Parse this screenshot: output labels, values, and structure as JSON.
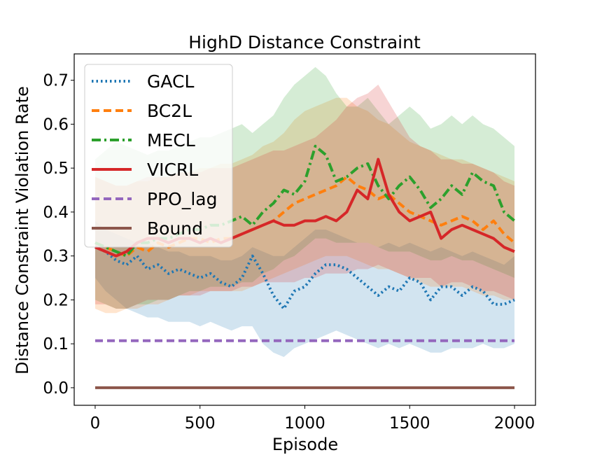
{
  "chart_data": {
    "type": "line",
    "title": "HighD Distance Constraint",
    "xlabel": "Episode",
    "ylabel": "Distance Constraint Violation Rate",
    "xlim": [
      -100,
      2100
    ],
    "ylim": [
      -0.04,
      0.76
    ],
    "xticks": [
      0,
      500,
      1000,
      1500,
      2000
    ],
    "yticks": [
      0.0,
      0.1,
      0.2,
      0.3,
      0.4,
      0.5,
      0.6,
      0.7
    ],
    "xtick_labels": [
      "0",
      "500",
      "1000",
      "1500",
      "2000"
    ],
    "ytick_labels": [
      "0.0",
      "0.1",
      "0.2",
      "0.3",
      "0.4",
      "0.5",
      "0.6",
      "0.7"
    ],
    "legend_position": "top-left",
    "series": [
      {
        "name": "GACL",
        "color": "#1f77b4",
        "style": "dotted",
        "x": [
          0,
          50,
          100,
          150,
          200,
          250,
          300,
          350,
          400,
          450,
          500,
          550,
          600,
          650,
          700,
          750,
          800,
          850,
          900,
          950,
          1000,
          1050,
          1100,
          1150,
          1200,
          1250,
          1300,
          1350,
          1400,
          1450,
          1500,
          1550,
          1600,
          1650,
          1700,
          1750,
          1800,
          1850,
          1900,
          1950,
          2000
        ],
        "values": [
          0.32,
          0.31,
          0.29,
          0.28,
          0.3,
          0.27,
          0.28,
          0.26,
          0.27,
          0.26,
          0.25,
          0.26,
          0.24,
          0.23,
          0.25,
          0.3,
          0.26,
          0.21,
          0.18,
          0.22,
          0.23,
          0.26,
          0.28,
          0.28,
          0.27,
          0.25,
          0.23,
          0.21,
          0.23,
          0.22,
          0.25,
          0.24,
          0.2,
          0.23,
          0.23,
          0.21,
          0.23,
          0.22,
          0.19,
          0.19,
          0.2
        ],
        "band_low": [
          0.25,
          0.22,
          0.2,
          0.18,
          0.17,
          0.16,
          0.16,
          0.15,
          0.15,
          0.15,
          0.14,
          0.15,
          0.14,
          0.13,
          0.14,
          0.14,
          0.1,
          0.08,
          0.07,
          0.09,
          0.1,
          0.11,
          0.12,
          0.13,
          0.12,
          0.11,
          0.1,
          0.09,
          0.1,
          0.09,
          0.1,
          0.09,
          0.08,
          0.08,
          0.09,
          0.09,
          0.09,
          0.1,
          0.09,
          0.09,
          0.1
        ],
        "band_high": [
          0.38,
          0.36,
          0.35,
          0.34,
          0.33,
          0.33,
          0.32,
          0.31,
          0.31,
          0.3,
          0.3,
          0.3,
          0.29,
          0.29,
          0.3,
          0.32,
          0.31,
          0.3,
          0.3,
          0.32,
          0.34,
          0.36,
          0.36,
          0.35,
          0.34,
          0.33,
          0.33,
          0.32,
          0.33,
          0.32,
          0.33,
          0.32,
          0.31,
          0.32,
          0.31,
          0.3,
          0.31,
          0.3,
          0.29,
          0.28,
          0.3
        ]
      },
      {
        "name": "BC2L",
        "color": "#ff7f0e",
        "style": "dashed",
        "x": [
          0,
          50,
          100,
          150,
          200,
          250,
          300,
          350,
          400,
          450,
          500,
          550,
          600,
          650,
          700,
          750,
          800,
          850,
          900,
          950,
          1000,
          1050,
          1100,
          1150,
          1200,
          1250,
          1300,
          1350,
          1400,
          1450,
          1500,
          1550,
          1600,
          1650,
          1700,
          1750,
          1800,
          1850,
          1900,
          1950,
          2000
        ],
        "values": [
          0.33,
          0.32,
          0.31,
          0.3,
          0.32,
          0.31,
          0.33,
          0.32,
          0.33,
          0.34,
          0.34,
          0.33,
          0.34,
          0.34,
          0.35,
          0.36,
          0.37,
          0.38,
          0.4,
          0.42,
          0.43,
          0.44,
          0.45,
          0.46,
          0.48,
          0.46,
          0.45,
          0.43,
          0.44,
          0.42,
          0.4,
          0.39,
          0.38,
          0.37,
          0.38,
          0.39,
          0.38,
          0.36,
          0.38,
          0.35,
          0.33
        ],
        "band_low": [
          0.18,
          0.17,
          0.17,
          0.18,
          0.18,
          0.19,
          0.19,
          0.2,
          0.21,
          0.21,
          0.22,
          0.22,
          0.22,
          0.22,
          0.22,
          0.23,
          0.24,
          0.25,
          0.26,
          0.27,
          0.28,
          0.29,
          0.3,
          0.3,
          0.3,
          0.29,
          0.28,
          0.27,
          0.27,
          0.26,
          0.25,
          0.24,
          0.23,
          0.23,
          0.23,
          0.23,
          0.22,
          0.21,
          0.21,
          0.2,
          0.2
        ],
        "band_high": [
          0.48,
          0.47,
          0.46,
          0.46,
          0.47,
          0.47,
          0.48,
          0.48,
          0.49,
          0.49,
          0.5,
          0.5,
          0.51,
          0.51,
          0.52,
          0.53,
          0.55,
          0.56,
          0.58,
          0.61,
          0.63,
          0.64,
          0.65,
          0.66,
          0.66,
          0.64,
          0.63,
          0.61,
          0.6,
          0.58,
          0.56,
          0.55,
          0.54,
          0.53,
          0.52,
          0.52,
          0.51,
          0.5,
          0.49,
          0.48,
          0.47
        ]
      },
      {
        "name": "MECL",
        "color": "#2ca02c",
        "style": "dashdot",
        "x": [
          0,
          50,
          100,
          150,
          200,
          250,
          300,
          350,
          400,
          450,
          500,
          550,
          600,
          650,
          700,
          750,
          800,
          850,
          900,
          950,
          1000,
          1050,
          1100,
          1150,
          1200,
          1250,
          1300,
          1350,
          1400,
          1450,
          1500,
          1550,
          1600,
          1650,
          1700,
          1750,
          1800,
          1850,
          1900,
          1950,
          2000
        ],
        "values": [
          0.33,
          0.32,
          0.31,
          0.3,
          0.33,
          0.33,
          0.34,
          0.34,
          0.35,
          0.36,
          0.36,
          0.37,
          0.37,
          0.38,
          0.39,
          0.37,
          0.4,
          0.42,
          0.45,
          0.44,
          0.47,
          0.55,
          0.53,
          0.47,
          0.48,
          0.5,
          0.51,
          0.46,
          0.43,
          0.46,
          0.48,
          0.45,
          0.41,
          0.43,
          0.46,
          0.44,
          0.49,
          0.47,
          0.46,
          0.4,
          0.38
        ],
        "band_low": [
          0.2,
          0.19,
          0.18,
          0.18,
          0.19,
          0.19,
          0.2,
          0.2,
          0.21,
          0.22,
          0.22,
          0.23,
          0.23,
          0.23,
          0.24,
          0.24,
          0.26,
          0.27,
          0.29,
          0.3,
          0.32,
          0.34,
          0.34,
          0.33,
          0.33,
          0.33,
          0.33,
          0.32,
          0.31,
          0.31,
          0.31,
          0.3,
          0.29,
          0.29,
          0.3,
          0.29,
          0.29,
          0.28,
          0.27,
          0.26,
          0.25
        ],
        "band_high": [
          0.52,
          0.54,
          0.56,
          0.55,
          0.54,
          0.53,
          0.54,
          0.54,
          0.55,
          0.56,
          0.57,
          0.57,
          0.58,
          0.59,
          0.6,
          0.58,
          0.6,
          0.62,
          0.66,
          0.69,
          0.71,
          0.73,
          0.71,
          0.67,
          0.64,
          0.64,
          0.66,
          0.63,
          0.6,
          0.62,
          0.64,
          0.62,
          0.59,
          0.6,
          0.62,
          0.6,
          0.62,
          0.6,
          0.59,
          0.57,
          0.55
        ]
      },
      {
        "name": "VICRL",
        "color": "#d62728",
        "style": "solid",
        "x": [
          0,
          50,
          100,
          150,
          200,
          250,
          300,
          350,
          400,
          450,
          500,
          550,
          600,
          650,
          700,
          750,
          800,
          850,
          900,
          950,
          1000,
          1050,
          1100,
          1150,
          1200,
          1250,
          1300,
          1350,
          1400,
          1450,
          1500,
          1550,
          1600,
          1650,
          1700,
          1750,
          1800,
          1850,
          1900,
          1950,
          2000
        ],
        "values": [
          0.32,
          0.31,
          0.3,
          0.31,
          0.33,
          0.34,
          0.34,
          0.33,
          0.34,
          0.34,
          0.33,
          0.34,
          0.33,
          0.34,
          0.35,
          0.36,
          0.37,
          0.38,
          0.37,
          0.37,
          0.38,
          0.38,
          0.39,
          0.38,
          0.4,
          0.45,
          0.43,
          0.52,
          0.44,
          0.4,
          0.38,
          0.39,
          0.4,
          0.34,
          0.36,
          0.37,
          0.36,
          0.35,
          0.34,
          0.32,
          0.31
        ],
        "band_low": [
          0.19,
          0.19,
          0.18,
          0.18,
          0.19,
          0.2,
          0.2,
          0.2,
          0.21,
          0.21,
          0.21,
          0.22,
          0.22,
          0.22,
          0.23,
          0.23,
          0.24,
          0.24,
          0.24,
          0.24,
          0.25,
          0.25,
          0.26,
          0.26,
          0.26,
          0.27,
          0.27,
          0.28,
          0.27,
          0.26,
          0.25,
          0.25,
          0.25,
          0.23,
          0.24,
          0.24,
          0.23,
          0.22,
          0.22,
          0.21,
          0.2
        ],
        "band_high": [
          0.48,
          0.47,
          0.46,
          0.46,
          0.47,
          0.48,
          0.48,
          0.48,
          0.49,
          0.49,
          0.49,
          0.5,
          0.5,
          0.5,
          0.51,
          0.52,
          0.53,
          0.54,
          0.54,
          0.55,
          0.56,
          0.57,
          0.59,
          0.61,
          0.64,
          0.66,
          0.67,
          0.69,
          0.65,
          0.61,
          0.57,
          0.55,
          0.54,
          0.52,
          0.52,
          0.51,
          0.51,
          0.5,
          0.49,
          0.47,
          0.46
        ]
      },
      {
        "name": "PPO_lag",
        "color": "#9467bd",
        "style": "dashed",
        "x": [
          0,
          2000
        ],
        "values": [
          0.107,
          0.107
        ]
      },
      {
        "name": "Bound",
        "color": "#8c564b",
        "style": "solid",
        "x": [
          0,
          2000
        ],
        "values": [
          0.0,
          0.0
        ]
      }
    ]
  }
}
